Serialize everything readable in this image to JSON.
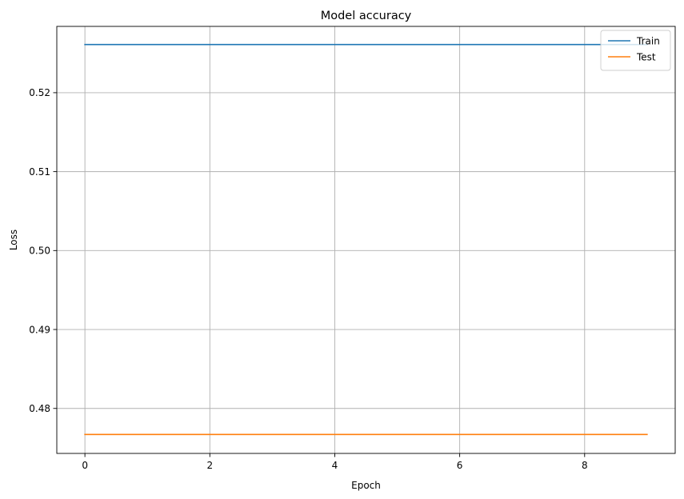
{
  "chart_data": {
    "type": "line",
    "title": "Model accuracy",
    "xlabel": "Epoch",
    "ylabel": "Loss",
    "xlim": [
      -0.45,
      9.45
    ],
    "ylim": [
      0.4743,
      0.5284
    ],
    "x": [
      0,
      1,
      2,
      3,
      4,
      5,
      6,
      7,
      8,
      9
    ],
    "xticks": [
      0,
      2,
      4,
      6,
      8
    ],
    "xtick_labels": [
      "0",
      "2",
      "4",
      "6",
      "8"
    ],
    "yticks": [
      0.48,
      0.49,
      0.5,
      0.51,
      0.52
    ],
    "ytick_labels": [
      "0.48",
      "0.49",
      "0.50",
      "0.51",
      "0.52"
    ],
    "grid": true,
    "legend_position": "top-right",
    "series": [
      {
        "name": "Train",
        "color": "#1f77b4",
        "values": [
          0.5261,
          0.5261,
          0.5261,
          0.5261,
          0.5261,
          0.5261,
          0.5261,
          0.5261,
          0.5261,
          0.5261
        ]
      },
      {
        "name": "Test",
        "color": "#ff7f0e",
        "values": [
          0.4767,
          0.4767,
          0.4767,
          0.4767,
          0.4767,
          0.4767,
          0.4767,
          0.4767,
          0.4767,
          0.4767
        ]
      }
    ]
  }
}
